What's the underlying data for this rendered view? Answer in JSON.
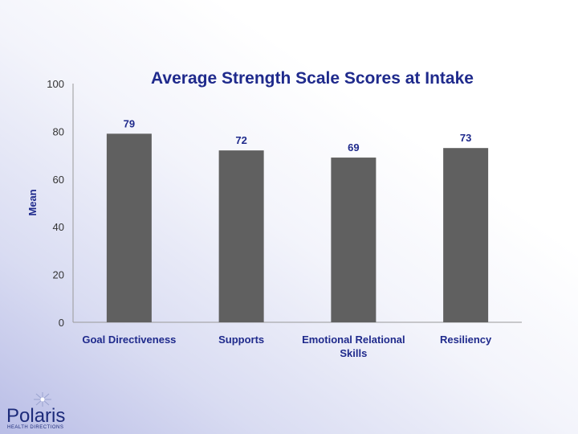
{
  "chart_data": {
    "type": "bar",
    "title": "Average Strength Scale Scores at Intake",
    "xlabel": "",
    "ylabel": "Mean",
    "ylim": [
      0,
      100
    ],
    "yticks": [
      0,
      20,
      40,
      60,
      80,
      100
    ],
    "categories": [
      [
        "Goal Directiveness"
      ],
      [
        "Supports"
      ],
      [
        "Emotional Relational",
        "Skills"
      ],
      [
        "Resiliency"
      ]
    ],
    "values": [
      79,
      72,
      69,
      73
    ],
    "data_labels": [
      "79",
      "72",
      "69",
      "73"
    ],
    "bar_color": "#606060",
    "grid": false,
    "legend": "none"
  },
  "logo": {
    "name": "Polaris",
    "tagline": "HEALTH DIRECTIONS"
  }
}
